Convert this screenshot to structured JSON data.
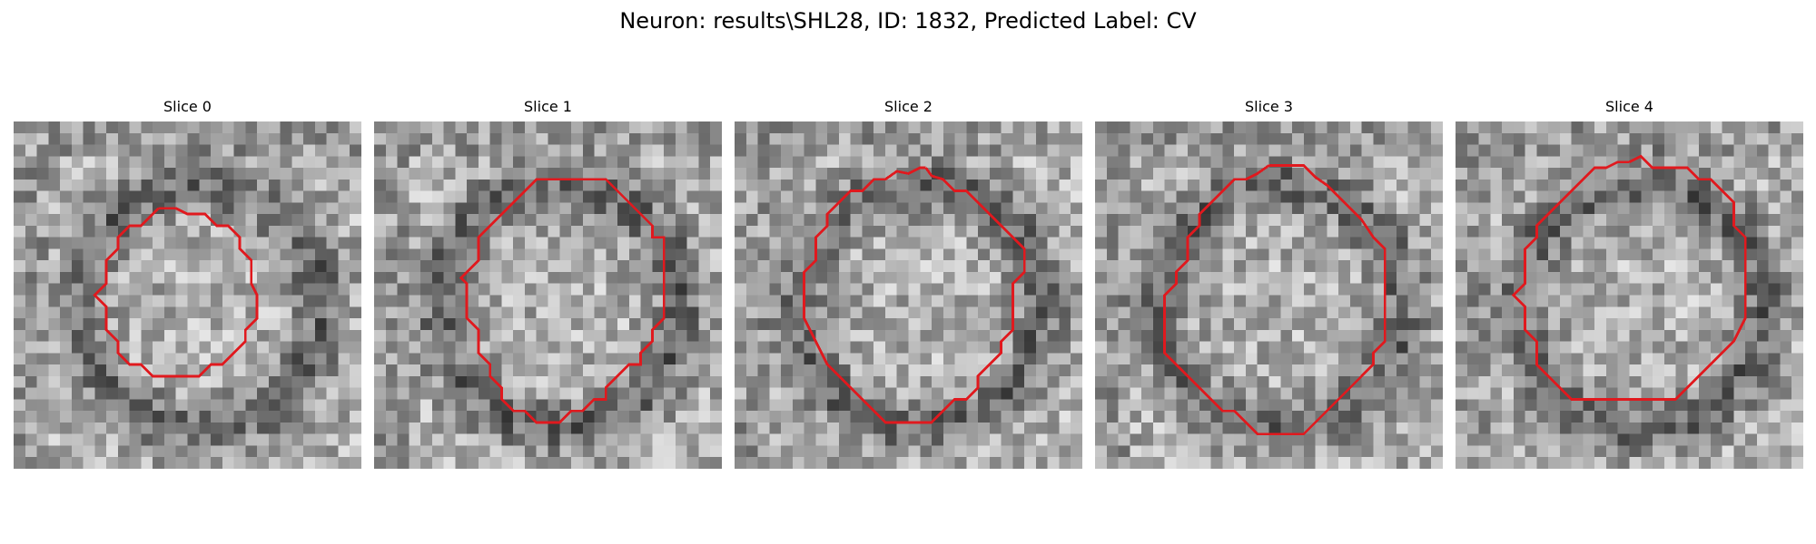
{
  "figure": {
    "title": "Neuron: results\\SHL28, ID: 1832, Predicted Label: CV"
  },
  "contour_color": "#e0191e",
  "panels": [
    {
      "title": "Slice 0",
      "seed": 11,
      "dark_ring": 1
    },
    {
      "title": "Slice 1",
      "seed": 23,
      "dark_ring": 1
    },
    {
      "title": "Slice 2",
      "seed": 37,
      "dark_ring": 1
    },
    {
      "title": "Slice 3",
      "seed": 53,
      "dark_ring": 1
    },
    {
      "title": "Slice 4",
      "seed": 71,
      "dark_ring": 1
    }
  ]
}
